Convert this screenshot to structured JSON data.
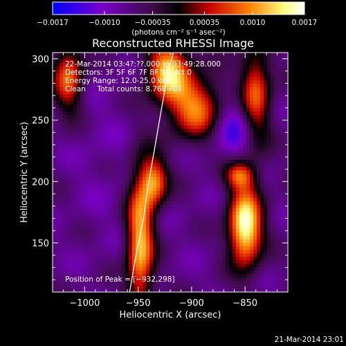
{
  "chart_data": {
    "type": "heatmap",
    "title": "Reconstructed RHESSI Image",
    "xlabel": "Heliocentric X (arcsec)",
    "ylabel": "Heliocentric Y (arcsec)",
    "xlim": [
      -1030,
      -810
    ],
    "ylim": [
      110,
      305
    ],
    "x_ticks": [
      -1000,
      -950,
      -900,
      -850
    ],
    "x_tick_labels": [
      "−1000",
      "−950",
      "−900",
      "−850"
    ],
    "y_ticks": [
      150,
      200,
      250,
      300
    ],
    "y_tick_labels": [
      "150",
      "200",
      "250",
      "300"
    ],
    "colorbar": {
      "range": [
        -0.0017,
        0.0017
      ],
      "ticks": [
        -0.0017,
        -0.001,
        -0.00035,
        0.00035,
        0.001,
        0.0017
      ],
      "tick_labels": [
        "−0.0017",
        "−0.0010",
        "−0.00035",
        "0.00035",
        "0.0010",
        "0.0017"
      ],
      "units": "(photons cm⁻² s⁻¹ asec⁻²)",
      "colormap": [
        "#0000ff",
        "#7b00c8",
        "#3c0c44",
        "#000000",
        "#c80000",
        "#ff8000",
        "#ffff80",
        "#ffffff"
      ]
    },
    "annotations": {
      "time": "22-Mar-2014 03:4?:??.000 to 03:49:28.000",
      "detectors": "Detectors: 3F 5F 6F 7F 8F 9F, Att 0",
      "energy": "Energy Range: 12.0-25.0 keV",
      "clean": "Clean     Total counts: 8.76E+03",
      "peak": "Position of Peak = [−932,298]"
    },
    "peak_position": [
      -932,
      298
    ],
    "grid": false,
    "limb_curve": {
      "x": [
        -958,
        -952,
        -945,
        -940,
        -934,
        -928,
        -922,
        -917
      ],
      "y": [
        110,
        140,
        170,
        200,
        230,
        260,
        290,
        305
      ]
    },
    "emission_blobs": [
      {
        "x": -948,
        "y": 150,
        "value": 0.0012,
        "sx": 9,
        "sy": 40
      },
      {
        "x": -935,
        "y": 200,
        "value": 0.0009,
        "sx": 9,
        "sy": 14
      },
      {
        "x": -850,
        "y": 163,
        "value": 0.0017,
        "sx": 11,
        "sy": 22
      },
      {
        "x": -922,
        "y": 290,
        "value": 0.0012,
        "sx": 14,
        "sy": 18
      },
      {
        "x": -895,
        "y": 260,
        "value": 0.0009,
        "sx": 18,
        "sy": 18
      },
      {
        "x": -840,
        "y": 270,
        "value": 0.0008,
        "sx": 10,
        "sy": 30
      },
      {
        "x": -1015,
        "y": 285,
        "value": 0.0008,
        "sx": 10,
        "sy": 20
      },
      {
        "x": -855,
        "y": 205,
        "value": 0.0006,
        "sx": 10,
        "sy": 8
      }
    ],
    "negative_regions": [
      {
        "x": -860,
        "y": 245,
        "value": -0.0014,
        "sx": 16,
        "sy": 18
      },
      {
        "x": -985,
        "y": 220,
        "value": -0.0008,
        "sx": 22,
        "sy": 60
      },
      {
        "x": -890,
        "y": 150,
        "value": -0.0007,
        "sx": 22,
        "sy": 30
      }
    ]
  },
  "footer": {
    "timestamp": "21-Mar-2014 23:01"
  }
}
